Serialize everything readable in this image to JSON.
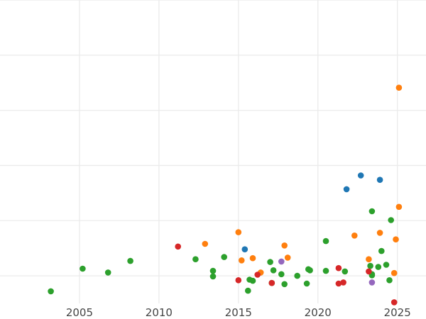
{
  "chart_data": {
    "type": "scatter",
    "title": "",
    "xlabel": "",
    "ylabel": "",
    "grid": true,
    "xlim": [
      2000.0,
      2026.8
    ],
    "ylim": [
      0.5,
      6.0
    ],
    "xticks": [
      2005,
      2010,
      2015,
      2020,
      2025
    ],
    "xtick_labels": [
      "2005",
      "2010",
      "2015",
      "2020",
      "2025"
    ],
    "yticks": [
      1,
      2,
      3,
      4,
      5,
      6
    ],
    "series": [
      {
        "color": "#1f77b4",
        "points": [
          [
            2015.4,
            1.48
          ],
          [
            2021.8,
            2.57
          ],
          [
            2022.7,
            2.82
          ],
          [
            2023.9,
            2.74
          ]
        ]
      },
      {
        "color": "#ff7f0e",
        "points": [
          [
            2012.9,
            1.58
          ],
          [
            2015.0,
            1.79
          ],
          [
            2015.2,
            1.28
          ],
          [
            2015.9,
            1.32
          ],
          [
            2016.4,
            1.06
          ],
          [
            2017.9,
            1.55
          ],
          [
            2018.1,
            1.33
          ],
          [
            2022.3,
            1.73
          ],
          [
            2023.2,
            1.3
          ],
          [
            2023.9,
            1.78
          ],
          [
            2024.8,
            1.05
          ],
          [
            2024.9,
            1.66
          ],
          [
            2025.1,
            2.25
          ],
          [
            2025.1,
            4.41
          ]
        ]
      },
      {
        "color": "#2ca02c",
        "points": [
          [
            2003.2,
            0.72
          ],
          [
            2005.2,
            1.13
          ],
          [
            2006.8,
            1.06
          ],
          [
            2008.2,
            1.27
          ],
          [
            2012.3,
            1.3
          ],
          [
            2013.4,
            1.09
          ],
          [
            2013.4,
            0.99
          ],
          [
            2014.1,
            1.34
          ],
          [
            2015.6,
            0.73
          ],
          [
            2015.7,
            0.93
          ],
          [
            2015.9,
            0.91
          ],
          [
            2017.0,
            1.25
          ],
          [
            2017.1,
            0.87
          ],
          [
            2017.2,
            1.1
          ],
          [
            2017.7,
            1.03
          ],
          [
            2017.9,
            0.85
          ],
          [
            2018.7,
            1.0
          ],
          [
            2019.3,
            0.86
          ],
          [
            2019.4,
            1.12
          ],
          [
            2019.5,
            1.1
          ],
          [
            2020.5,
            1.09
          ],
          [
            2020.5,
            1.63
          ],
          [
            2021.7,
            1.08
          ],
          [
            2023.3,
            1.18
          ],
          [
            2023.4,
            1.03
          ],
          [
            2023.4,
            2.17
          ],
          [
            2023.4,
            1.01
          ],
          [
            2023.8,
            1.16
          ],
          [
            2024.0,
            1.45
          ],
          [
            2024.3,
            1.2
          ],
          [
            2024.5,
            0.92
          ],
          [
            2024.6,
            2.01
          ]
        ]
      },
      {
        "color": "#d62728",
        "points": [
          [
            2011.2,
            1.53
          ],
          [
            2015.0,
            0.92
          ],
          [
            2016.2,
            1.02
          ],
          [
            2017.1,
            0.87
          ],
          [
            2021.3,
            1.14
          ],
          [
            2021.3,
            0.86
          ],
          [
            2021.6,
            0.88
          ],
          [
            2023.2,
            1.08
          ],
          [
            2024.8,
            0.52
          ]
        ]
      },
      {
        "color": "#9467bd",
        "points": [
          [
            2017.7,
            1.26
          ],
          [
            2023.4,
            0.88
          ]
        ]
      }
    ]
  }
}
